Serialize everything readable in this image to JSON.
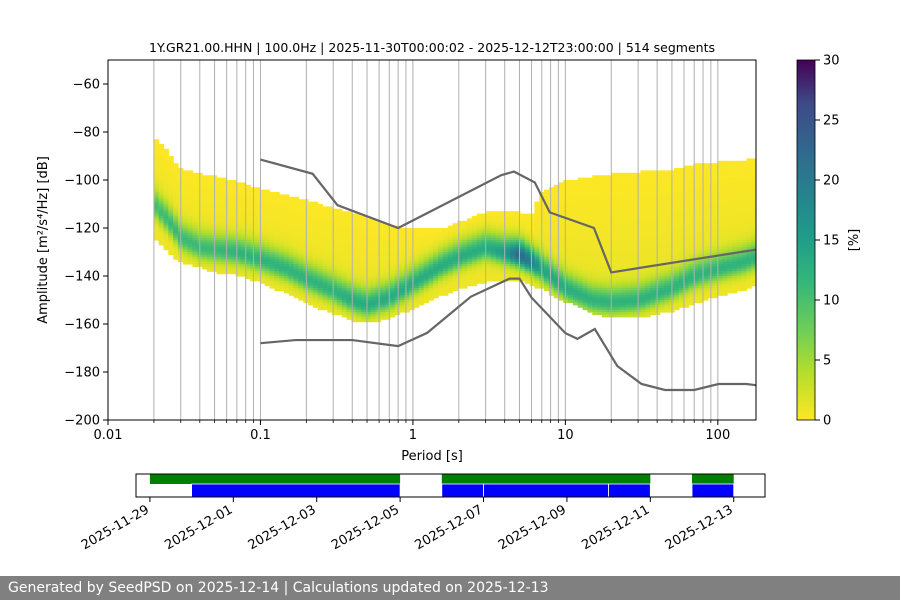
{
  "chart_data": [
    {
      "type": "heatmap",
      "title": "1Y.GR21.00.HHN | 100.0Hz | 2025-11-30T00:00:02 - 2025-12-12T23:00:00 | 514 segments",
      "xlabel": "Period [s]",
      "ylabel": "Amplitude [m²/s⁴/Hz] [dB]",
      "x_scale": "log",
      "xlim": [
        0.01,
        178
      ],
      "ylim": [
        -200,
        -50
      ],
      "x_ticks": [
        {
          "value": 0.01,
          "label": "0.01"
        },
        {
          "value": 0.1,
          "label": "0.1"
        },
        {
          "value": 1,
          "label": "1"
        },
        {
          "value": 10,
          "label": "10"
        },
        {
          "value": 100,
          "label": "100"
        }
      ],
      "y_ticks": [
        {
          "value": -60,
          "label": "−60"
        },
        {
          "value": -80,
          "label": "−80"
        },
        {
          "value": -100,
          "label": "−100"
        },
        {
          "value": -120,
          "label": "−120"
        },
        {
          "value": -140,
          "label": "−140"
        },
        {
          "value": -160,
          "label": "−160"
        },
        {
          "value": -180,
          "label": "−180"
        },
        {
          "value": -200,
          "label": "−200"
        }
      ],
      "grid": "vertical",
      "colorbar": {
        "label": "[%]",
        "range": [
          0,
          30
        ],
        "ticks": [
          0,
          5,
          10,
          15,
          20,
          25,
          30
        ],
        "tick_labels": [
          "0",
          "5",
          "10",
          "15",
          "20",
          "25",
          "30"
        ],
        "colormap": "viridis_r"
      },
      "psd_bands": [
        {
          "period": 0.02,
          "top": -82,
          "bottom": -124,
          "mode": -110,
          "peak": 9
        },
        {
          "period": 0.025,
          "top": -88,
          "bottom": -130,
          "mode": -117,
          "peak": 10
        },
        {
          "period": 0.03,
          "top": -95,
          "bottom": -134,
          "mode": -124,
          "peak": 10
        },
        {
          "period": 0.04,
          "top": -97,
          "bottom": -136,
          "mode": -128,
          "peak": 10
        },
        {
          "period": 0.05,
          "top": -98,
          "bottom": -138,
          "mode": -129,
          "peak": 10
        },
        {
          "period": 0.07,
          "top": -100,
          "bottom": -139,
          "mode": -130,
          "peak": 11
        },
        {
          "period": 0.1,
          "top": -103,
          "bottom": -142,
          "mode": -133,
          "peak": 11
        },
        {
          "period": 0.15,
          "top": -106,
          "bottom": -147,
          "mode": -137,
          "peak": 11
        },
        {
          "period": 0.2,
          "top": -108,
          "bottom": -151,
          "mode": -141,
          "peak": 11
        },
        {
          "period": 0.3,
          "top": -111,
          "bottom": -155,
          "mode": -146,
          "peak": 11
        },
        {
          "period": 0.4,
          "top": -113,
          "bottom": -158,
          "mode": -150,
          "peak": 12
        },
        {
          "period": 0.5,
          "top": -115,
          "bottom": -159,
          "mode": -152,
          "peak": 12
        },
        {
          "period": 0.7,
          "top": -118,
          "bottom": -157,
          "mode": -149,
          "peak": 12
        },
        {
          "period": 1,
          "top": -120,
          "bottom": -153,
          "mode": -143,
          "peak": 12
        },
        {
          "period": 1.5,
          "top": -120,
          "bottom": -148,
          "mode": -136,
          "peak": 12
        },
        {
          "period": 2,
          "top": -117,
          "bottom": -145,
          "mode": -132,
          "peak": 12
        },
        {
          "period": 3,
          "top": -113,
          "bottom": -142,
          "mode": -128,
          "peak": 12
        },
        {
          "period": 4,
          "top": -113,
          "bottom": -142,
          "mode": -130,
          "peak": 14
        },
        {
          "period": 5,
          "top": -113,
          "bottom": -141,
          "mode": -131,
          "peak": 22
        },
        {
          "period": 6,
          "top": -114,
          "bottom": -143,
          "mode": -134,
          "peak": 18
        },
        {
          "period": 7,
          "top": -104,
          "bottom": -145,
          "mode": -137,
          "peak": 13
        },
        {
          "period": 10,
          "top": -100,
          "bottom": -150,
          "mode": -145,
          "peak": 12
        },
        {
          "period": 15,
          "top": -98,
          "bottom": -155,
          "mode": -150,
          "peak": 11
        },
        {
          "period": 20,
          "top": -97,
          "bottom": -157,
          "mode": -151,
          "peak": 11
        },
        {
          "period": 30,
          "top": -96,
          "bottom": -157,
          "mode": -150,
          "peak": 11
        },
        {
          "period": 50,
          "top": -95,
          "bottom": -154,
          "mode": -145,
          "peak": 11
        },
        {
          "period": 70,
          "top": -93,
          "bottom": -151,
          "mode": -140,
          "peak": 11
        },
        {
          "period": 100,
          "top": -92,
          "bottom": -148,
          "mode": -137,
          "peak": 11
        },
        {
          "period": 150,
          "top": -91,
          "bottom": -145,
          "mode": -134,
          "peak": 11
        },
        {
          "period": 178,
          "top": -91,
          "bottom": -143,
          "mode": -132,
          "peak": 11
        }
      ],
      "noise_models": [
        {
          "role": "high-noise-model",
          "color": "#666666",
          "points": [
            [
              0.1,
              -91.5
            ],
            [
              0.22,
              -97.4
            ],
            [
              0.32,
              -110.5
            ],
            [
              0.8,
              -120
            ],
            [
              3.8,
              -98
            ],
            [
              4.6,
              -96.5
            ],
            [
              6.3,
              -101
            ],
            [
              7.9,
              -113.5
            ],
            [
              15.4,
              -120
            ],
            [
              20,
              -138.5
            ],
            [
              354.8,
              -126
            ]
          ]
        },
        {
          "role": "low-noise-model",
          "color": "#666666",
          "points": [
            [
              0.1,
              -168
            ],
            [
              0.17,
              -166.7
            ],
            [
              0.4,
              -166.7
            ],
            [
              0.8,
              -169.2
            ],
            [
              1.24,
              -163.7
            ],
            [
              2.4,
              -148.6
            ],
            [
              4.3,
              -141.1
            ],
            [
              5.0,
              -141.1
            ],
            [
              6.0,
              -149
            ],
            [
              10.0,
              -163.8
            ],
            [
              12.0,
              -166.2
            ],
            [
              15.6,
              -162.1
            ],
            [
              21.9,
              -177.5
            ],
            [
              31.6,
              -185
            ],
            [
              45,
              -187.5
            ],
            [
              70,
              -187.5
            ],
            [
              101,
              -185
            ],
            [
              154,
              -185
            ],
            [
              178,
              -185.5
            ]
          ]
        }
      ]
    },
    {
      "type": "bar",
      "role": "data-availability-timeline",
      "x_ticks": [
        "2025-11-29",
        "2025-12-01",
        "2025-12-03",
        "2025-12-05",
        "2025-12-07",
        "2025-12-09",
        "2025-12-11",
        "2025-12-13"
      ],
      "xlim": [
        "2025-11-28T16:00",
        "2025-12-13T18:00"
      ],
      "tracks": [
        {
          "color": "#008000",
          "segments": [
            [
              "2025-11-29T00:00",
              "2025-12-05T00:00"
            ],
            [
              "2025-12-06T00:00",
              "2025-12-11T00:00"
            ],
            [
              "2025-12-12T00:00",
              "2025-12-13T00:00"
            ]
          ]
        },
        {
          "color": "#0000ff",
          "segments": [
            [
              "2025-11-30T00:00",
              "2025-12-05T00:00"
            ],
            [
              "2025-12-06T00:00",
              "2025-12-07T00:00"
            ],
            [
              "2025-12-07T00:00",
              "2025-12-10T00:00"
            ],
            [
              "2025-12-10T00:00",
              "2025-12-11T00:00"
            ],
            [
              "2025-12-12T00:00",
              "2025-12-13T00:00"
            ]
          ]
        }
      ]
    }
  ],
  "footer": {
    "text": "Generated by SeedPSD on 2025-12-14 | Calculations updated on 2025-12-13"
  }
}
